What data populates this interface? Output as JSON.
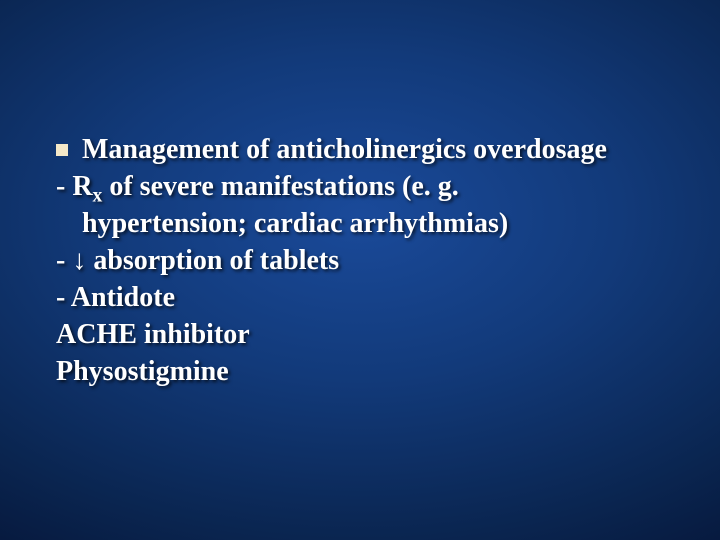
{
  "slide": {
    "background_gradient_center": "#1a4a9a",
    "background_gradient_edge": "#020818",
    "text_color": "#ffffff",
    "bullet_color": "#f4e8c8",
    "font_family": "Times New Roman",
    "font_size_pt": 28,
    "font_weight": "bold",
    "text_shadow": "2px 2px 3px rgba(0,0,0,0.7)",
    "lines": {
      "title": "Management of anticholinergics overdosage",
      "l1a": "- R",
      "l1sub": "x",
      "l1b": " of severe manifestations (e. g.",
      "l2": "hypertension;  cardiac arrhythmias)",
      "l3": "- ↓ absorption of tablets",
      "l4": "- Antidote",
      "l5": "ACHE inhibitor",
      "l6": "Physostigmine"
    }
  }
}
